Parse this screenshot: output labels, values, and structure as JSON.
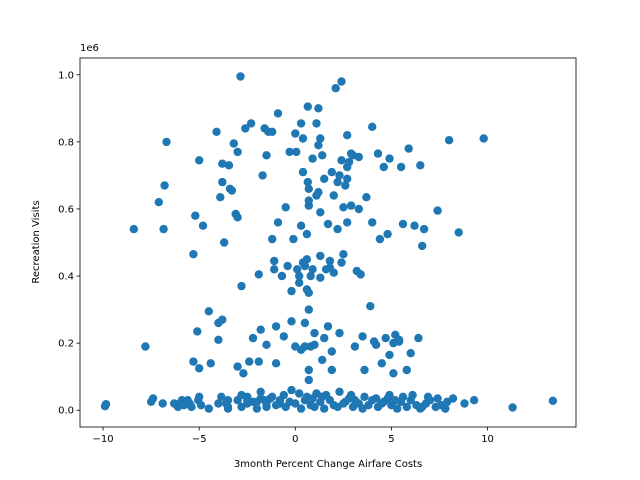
{
  "chart_data": {
    "type": "scatter",
    "title": "",
    "xlabel": "3month Percent Change Airfare Costs",
    "ylabel": "Recreation Visits",
    "y_offset_label": "1e6",
    "xlim": [
      -11.2,
      14.6
    ],
    "ylim": [
      -0.05,
      1.05
    ],
    "x_ticks": [
      -10,
      -5,
      0,
      5,
      10
    ],
    "y_ticks": [
      0.0,
      0.2,
      0.4,
      0.6,
      0.8,
      1.0
    ],
    "y_tick_labels": [
      "0.0",
      "0.2",
      "0.4",
      "0.6",
      "0.8",
      "1.0"
    ],
    "grid": false,
    "marker_color": "#1f77b4",
    "points": [
      [
        -9.9,
        0.012
      ],
      [
        -9.85,
        0.018
      ],
      [
        -8.4,
        0.54
      ],
      [
        -7.8,
        0.19
      ],
      [
        -7.5,
        0.025
      ],
      [
        -7.4,
        0.035
      ],
      [
        -7.1,
        0.62
      ],
      [
        -6.9,
        0.02
      ],
      [
        -6.85,
        0.54
      ],
      [
        -6.8,
        0.67
      ],
      [
        -6.7,
        0.8
      ],
      [
        -6.1,
        0.01
      ],
      [
        -6.0,
        0.02
      ],
      [
        -5.9,
        0.03
      ],
      [
        -5.8,
        0.015
      ],
      [
        -5.7,
        0.025
      ],
      [
        -5.6,
        0.03
      ],
      [
        -5.5,
        0.02
      ],
      [
        -5.4,
        0.01
      ],
      [
        -5.3,
        0.145
      ],
      [
        -5.3,
        0.465
      ],
      [
        -5.2,
        0.58
      ],
      [
        -5.1,
        0.235
      ],
      [
        -5.0,
        0.745
      ],
      [
        -5.0,
        0.125
      ],
      [
        -5.05,
        0.03
      ],
      [
        -4.9,
        0.015
      ],
      [
        -4.8,
        0.55
      ],
      [
        -4.5,
        0.295
      ],
      [
        -4.4,
        0.14
      ],
      [
        -4.1,
        0.83
      ],
      [
        -4.0,
        0.26
      ],
      [
        -4.0,
        0.21
      ],
      [
        -3.9,
        0.635
      ],
      [
        -3.85,
        0.04
      ],
      [
        -3.8,
        0.735
      ],
      [
        -3.8,
        0.68
      ],
      [
        -3.8,
        0.27
      ],
      [
        -3.7,
        0.5
      ],
      [
        -3.6,
        0.02
      ],
      [
        -3.5,
        0.01
      ],
      [
        -3.5,
        0.03
      ],
      [
        -3.45,
        0.73
      ],
      [
        -3.4,
        0.66
      ],
      [
        -3.3,
        0.655
      ],
      [
        -3.2,
        0.795
      ],
      [
        -3.1,
        0.585
      ],
      [
        -3.0,
        0.575
      ],
      [
        -3.0,
        0.77
      ],
      [
        -3.0,
        0.13
      ],
      [
        -2.85,
        0.995
      ],
      [
        -2.8,
        0.37
      ],
      [
        -2.8,
        0.045
      ],
      [
        -2.7,
        0.11
      ],
      [
        -2.6,
        0.84
      ],
      [
        -2.5,
        0.02
      ],
      [
        -2.5,
        0.03
      ],
      [
        -2.4,
        0.145
      ],
      [
        -2.3,
        0.855
      ],
      [
        -2.2,
        0.215
      ],
      [
        -2.0,
        0.025
      ],
      [
        -1.9,
        0.145
      ],
      [
        -1.9,
        0.405
      ],
      [
        -1.8,
        0.24
      ],
      [
        -1.8,
        0.035
      ],
      [
        -1.7,
        0.7
      ],
      [
        -1.6,
        0.84
      ],
      [
        -1.5,
        0.76
      ],
      [
        -1.5,
        0.195
      ],
      [
        -1.5,
        0.02
      ],
      [
        -1.4,
        0.83
      ],
      [
        -1.3,
        0.035
      ],
      [
        -1.2,
        0.83
      ],
      [
        -1.2,
        0.51
      ],
      [
        -1.1,
        0.445
      ],
      [
        -1.1,
        0.42
      ],
      [
        -1.0,
        0.25
      ],
      [
        -1.0,
        0.14
      ],
      [
        -0.9,
        0.885
      ],
      [
        -0.9,
        0.56
      ],
      [
        -0.8,
        0.03
      ],
      [
        -0.7,
        0.4
      ],
      [
        -0.6,
        0.22
      ],
      [
        -0.5,
        0.605
      ],
      [
        -0.4,
        0.43
      ],
      [
        -0.3,
        0.77
      ],
      [
        -0.2,
        0.265
      ],
      [
        -0.2,
        0.355
      ],
      [
        -0.1,
        0.51
      ],
      [
        0.0,
        0.825
      ],
      [
        0.0,
        0.19
      ],
      [
        0.05,
        0.77
      ],
      [
        0.1,
        0.42
      ],
      [
        0.2,
        0.38
      ],
      [
        0.2,
        0.4
      ],
      [
        0.3,
        0.855
      ],
      [
        0.3,
        0.55
      ],
      [
        0.3,
        0.18
      ],
      [
        0.4,
        0.81
      ],
      [
        0.4,
        0.71
      ],
      [
        0.4,
        0.44
      ],
      [
        0.5,
        0.43
      ],
      [
        0.5,
        0.26
      ],
      [
        0.5,
        0.19
      ],
      [
        0.6,
        0.36
      ],
      [
        0.6,
        0.525
      ],
      [
        0.6,
        0.45
      ],
      [
        0.65,
        0.905
      ],
      [
        0.65,
        0.68
      ],
      [
        0.7,
        0.66
      ],
      [
        0.7,
        0.61
      ],
      [
        0.7,
        0.625
      ],
      [
        0.7,
        0.35
      ],
      [
        0.7,
        0.3
      ],
      [
        0.7,
        0.12
      ],
      [
        0.7,
        0.09
      ],
      [
        0.8,
        0.4
      ],
      [
        0.8,
        0.19
      ],
      [
        0.9,
        0.75
      ],
      [
        0.9,
        0.42
      ],
      [
        1.0,
        0.23
      ],
      [
        1.0,
        0.195
      ],
      [
        1.1,
        0.855
      ],
      [
        1.1,
        0.64
      ],
      [
        1.2,
        0.9
      ],
      [
        1.2,
        0.79
      ],
      [
        1.2,
        0.65
      ],
      [
        1.3,
        0.81
      ],
      [
        1.3,
        0.59
      ],
      [
        1.3,
        0.46
      ],
      [
        1.3,
        0.395
      ],
      [
        1.4,
        0.76
      ],
      [
        1.4,
        0.15
      ],
      [
        1.5,
        0.69
      ],
      [
        1.5,
        0.215
      ],
      [
        1.6,
        0.42
      ],
      [
        1.7,
        0.555
      ],
      [
        1.7,
        0.25
      ],
      [
        1.8,
        0.445
      ],
      [
        1.8,
        0.425
      ],
      [
        1.9,
        0.71
      ],
      [
        1.9,
        0.175
      ],
      [
        1.9,
        0.12
      ],
      [
        2.0,
        0.64
      ],
      [
        2.0,
        0.41
      ],
      [
        2.1,
        0.96
      ],
      [
        2.2,
        0.68
      ],
      [
        2.2,
        0.54
      ],
      [
        2.3,
        0.7
      ],
      [
        2.3,
        0.23
      ],
      [
        2.4,
        0.98
      ],
      [
        2.4,
        0.745
      ],
      [
        2.4,
        0.44
      ],
      [
        2.5,
        0.465
      ],
      [
        2.5,
        0.605
      ],
      [
        2.6,
        0.67
      ],
      [
        2.7,
        0.725
      ],
      [
        2.7,
        0.69
      ],
      [
        2.7,
        0.82
      ],
      [
        2.7,
        0.56
      ],
      [
        2.8,
        0.74
      ],
      [
        2.9,
        0.765
      ],
      [
        2.9,
        0.61
      ],
      [
        3.0,
        0.76
      ],
      [
        3.1,
        0.19
      ],
      [
        3.2,
        0.415
      ],
      [
        3.3,
        0.755
      ],
      [
        3.3,
        0.6
      ],
      [
        3.4,
        0.405
      ],
      [
        3.5,
        0.22
      ],
      [
        3.6,
        0.12
      ],
      [
        3.7,
        0.635
      ],
      [
        3.9,
        0.31
      ],
      [
        4.0,
        0.845
      ],
      [
        4.0,
        0.56
      ],
      [
        4.1,
        0.205
      ],
      [
        4.2,
        0.195
      ],
      [
        4.3,
        0.765
      ],
      [
        4.4,
        0.51
      ],
      [
        4.5,
        0.14
      ],
      [
        4.6,
        0.725
      ],
      [
        4.7,
        0.215
      ],
      [
        4.8,
        0.525
      ],
      [
        4.9,
        0.75
      ],
      [
        4.9,
        0.165
      ],
      [
        5.1,
        0.11
      ],
      [
        5.1,
        0.2
      ],
      [
        5.2,
        0.225
      ],
      [
        5.4,
        0.205
      ],
      [
        5.4,
        0.21
      ],
      [
        5.5,
        0.725
      ],
      [
        5.6,
        0.555
      ],
      [
        5.8,
        0.12
      ],
      [
        5.9,
        0.78
      ],
      [
        6.0,
        0.17
      ],
      [
        6.2,
        0.55
      ],
      [
        6.4,
        0.215
      ],
      [
        6.5,
        0.73
      ],
      [
        6.6,
        0.49
      ],
      [
        6.7,
        0.54
      ],
      [
        7.4,
        0.595
      ],
      [
        8.0,
        0.805
      ],
      [
        8.5,
        0.53
      ],
      [
        9.8,
        0.81
      ],
      [
        -2.0,
        0.005
      ],
      [
        -1.5,
        0.01
      ],
      [
        -1.0,
        0.015
      ],
      [
        -0.5,
        0.01
      ],
      [
        0.0,
        0.02
      ],
      [
        0.3,
        0.005
      ],
      [
        0.5,
        0.03
      ],
      [
        0.8,
        0.015
      ],
      [
        1.0,
        0.01
      ],
      [
        1.3,
        0.025
      ],
      [
        1.5,
        0.005
      ],
      [
        1.8,
        0.03
      ],
      [
        2.0,
        0.015
      ],
      [
        2.2,
        0.01
      ],
      [
        2.5,
        0.02
      ],
      [
        2.8,
        0.035
      ],
      [
        3.0,
        0.01
      ],
      [
        3.3,
        0.02
      ],
      [
        3.5,
        0.005
      ],
      [
        3.8,
        0.015
      ],
      [
        4.0,
        0.03
      ],
      [
        4.3,
        0.01
      ],
      [
        4.5,
        0.02
      ],
      [
        4.8,
        0.035
      ],
      [
        5.0,
        0.015
      ],
      [
        5.3,
        0.005
      ],
      [
        5.5,
        0.025
      ],
      [
        5.8,
        0.01
      ],
      [
        6.0,
        0.03
      ],
      [
        6.3,
        0.015
      ],
      [
        6.5,
        0.005
      ],
      [
        6.8,
        0.02
      ],
      [
        7.0,
        0.03
      ],
      [
        7.3,
        0.01
      ],
      [
        7.6,
        0.015
      ],
      [
        7.9,
        0.025
      ],
      [
        8.2,
        0.035
      ],
      [
        8.8,
        0.02
      ],
      [
        9.3,
        0.03
      ],
      [
        11.3,
        0.008
      ],
      [
        13.4,
        0.028
      ],
      [
        -3.0,
        0.03
      ],
      [
        -2.5,
        0.04
      ],
      [
        -1.8,
        0.055
      ],
      [
        -1.2,
        0.04
      ],
      [
        -0.6,
        0.045
      ],
      [
        -0.2,
        0.06
      ],
      [
        0.2,
        0.05
      ],
      [
        0.6,
        0.04
      ],
      [
        1.1,
        0.05
      ],
      [
        1.6,
        0.045
      ],
      [
        2.3,
        0.055
      ],
      [
        2.9,
        0.045
      ],
      [
        3.6,
        0.04
      ],
      [
        4.2,
        0.035
      ],
      [
        4.9,
        0.045
      ],
      [
        5.6,
        0.04
      ],
      [
        6.1,
        0.045
      ],
      [
        6.9,
        0.04
      ],
      [
        7.4,
        0.035
      ],
      [
        -4.0,
        0.02
      ],
      [
        -3.5,
        0.005
      ],
      [
        -2.8,
        0.01
      ],
      [
        -2.2,
        0.025
      ],
      [
        -1.6,
        0.03
      ],
      [
        -0.8,
        0.02
      ],
      [
        -0.3,
        0.025
      ],
      [
        0.9,
        0.035
      ],
      [
        1.4,
        0.04
      ],
      [
        2.6,
        0.025
      ],
      [
        3.1,
        0.03
      ],
      [
        4.6,
        0.025
      ],
      [
        5.2,
        0.03
      ],
      [
        6.6,
        0.01
      ],
      [
        7.8,
        0.005
      ],
      [
        -6.3,
        0.02
      ],
      [
        -5.0,
        0.04
      ],
      [
        -4.5,
        0.005
      ]
    ]
  }
}
